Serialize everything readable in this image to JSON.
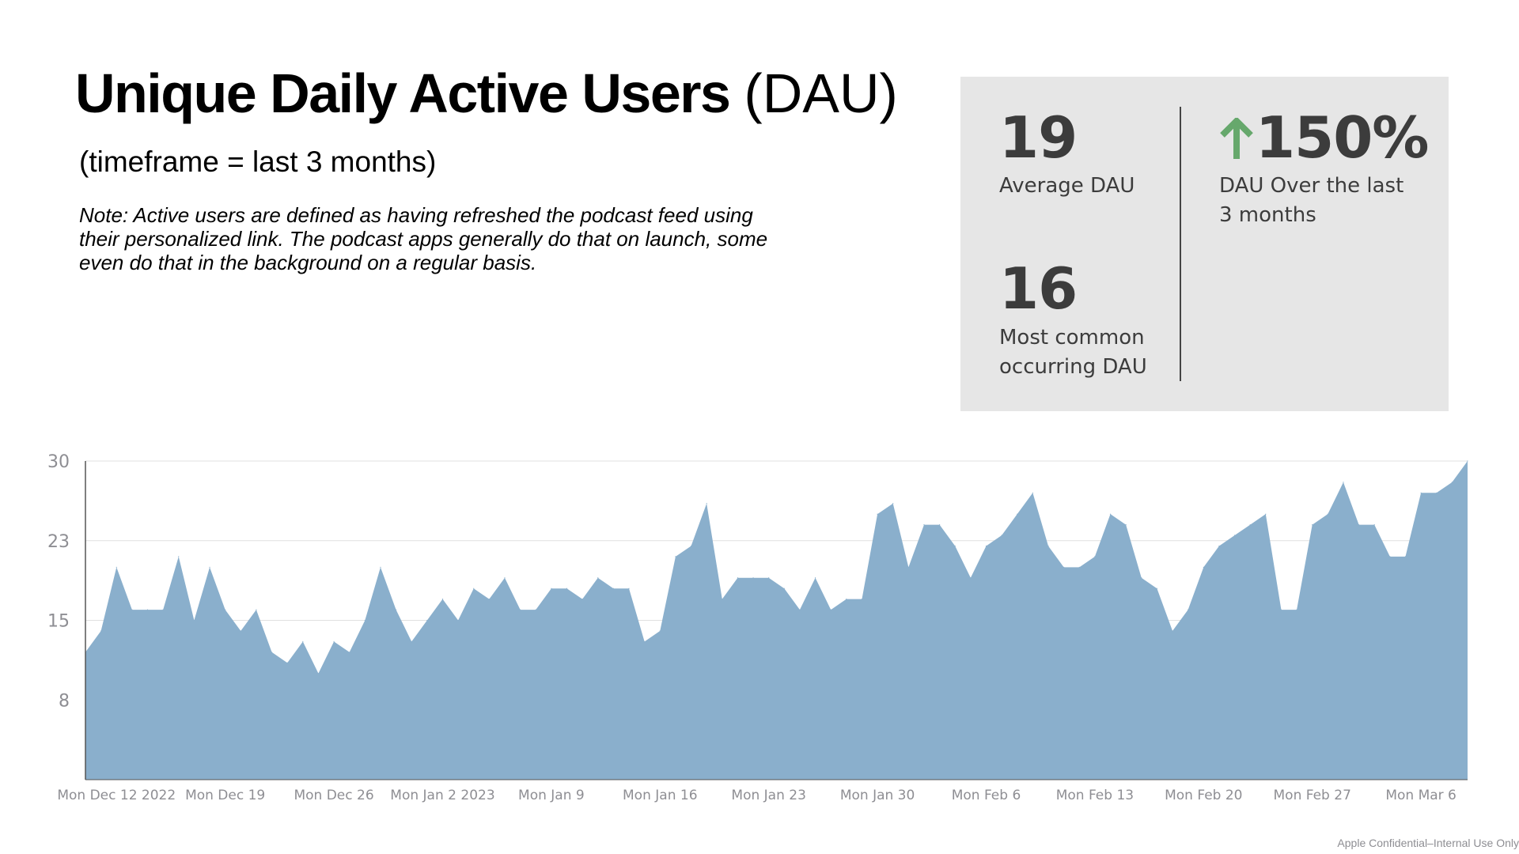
{
  "header": {
    "title_bold": "Unique Daily Active Users",
    "title_light": "(DAU)",
    "subtitle": "(timeframe = last 3 months)",
    "note": "Note: Active users are defined as having refreshed the podcast feed using their personalized link. The podcast apps generally do that on launch, some even do that in the background on a regular basis."
  },
  "kpis": {
    "average_value": "19",
    "average_label": "Average DAU",
    "mode_value": "16",
    "mode_label": "Most common occurring DAU",
    "growth_value": "150%",
    "growth_label": "DAU Over the last 3 months",
    "growth_icon": "arrow-up-icon",
    "growth_color": "#66a86c"
  },
  "footer": {
    "text": "Apple Confidential–Internal Use Only"
  },
  "colors": {
    "area_fill": "#8aafcc",
    "grid": "#e0e0e0",
    "axis": "#555555",
    "tick_text": "#8e8e93"
  },
  "chart_data": {
    "type": "area",
    "title": "",
    "xlabel": "",
    "ylabel": "",
    "ylim": [
      0,
      30
    ],
    "grid": true,
    "legend": "none",
    "y_ticks": [
      "30",
      "23",
      "15",
      "8"
    ],
    "y_tick_values": [
      30,
      22.5,
      15,
      7.5
    ],
    "x_tick_labels": [
      "Mon Dec 12 2022",
      "Mon Dec 19",
      "Mon Dec 26",
      "Mon Jan 2 2023",
      "Mon Jan 9",
      "Mon Jan 16",
      "Mon Jan 23",
      "Mon Jan 30",
      "Mon Feb 6",
      "Mon Feb 13",
      "Mon Feb 20",
      "Mon Feb 27",
      "Mon Mar 6"
    ],
    "values": [
      12,
      14,
      20,
      16,
      16,
      16,
      21,
      15,
      20,
      16,
      14,
      16,
      12,
      11,
      13,
      10,
      13,
      12,
      15,
      20,
      16,
      13,
      15,
      17,
      15,
      18,
      17,
      19,
      16,
      16,
      18,
      18,
      17,
      19,
      18,
      18,
      13,
      14,
      21,
      22,
      26,
      17,
      19,
      19,
      19,
      18,
      16,
      19,
      16,
      17,
      17,
      25,
      26,
      20,
      24,
      24,
      22,
      19,
      22,
      23,
      25,
      27,
      22,
      20,
      20,
      21,
      25,
      24,
      19,
      18,
      14,
      16,
      20,
      22,
      23,
      24,
      25,
      16,
      16,
      24,
      25,
      28,
      24,
      24,
      21,
      21,
      27,
      27,
      28,
      30
    ]
  }
}
